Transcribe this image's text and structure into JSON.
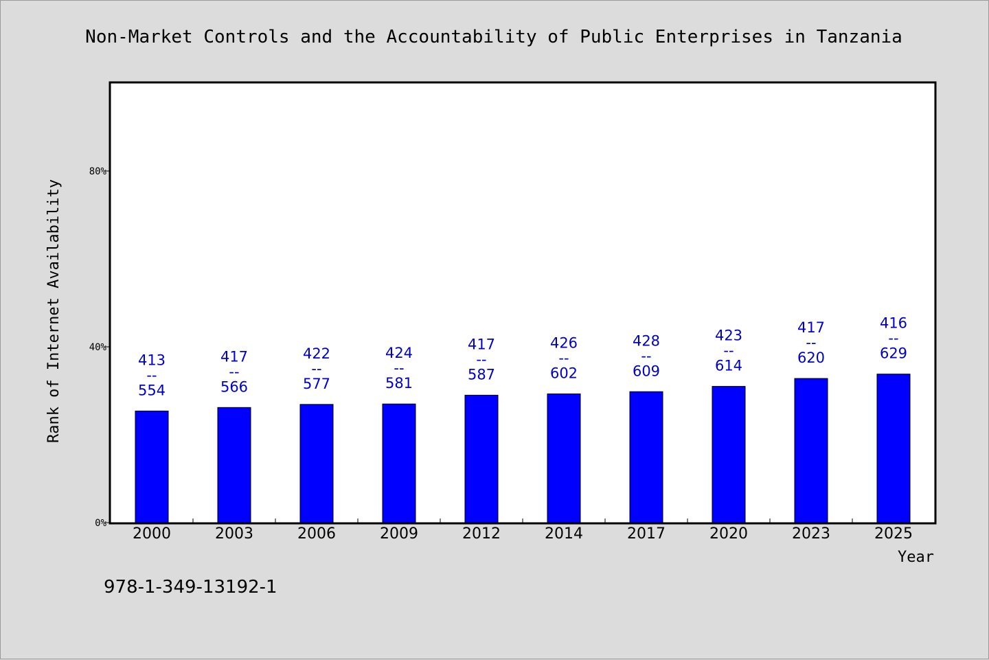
{
  "chart_data": {
    "type": "bar",
    "title": "Non-Market Controls and the Accountability of Public Enterprises in Tanzania",
    "xlabel": "Year",
    "ylabel": "Rank of Internet Availability",
    "categories": [
      "2000",
      "2003",
      "2006",
      "2009",
      "2012",
      "2014",
      "2017",
      "2020",
      "2023",
      "2025"
    ],
    "values": [
      25.4,
      26.2,
      26.9,
      27.0,
      29.0,
      29.3,
      29.8,
      31.0,
      32.8,
      33.8
    ],
    "bar_labels": [
      {
        "top": "413",
        "sep": "--",
        "bottom": "554"
      },
      {
        "top": "417",
        "sep": "--",
        "bottom": "566"
      },
      {
        "top": "422",
        "sep": "--",
        "bottom": "577"
      },
      {
        "top": "424",
        "sep": "--",
        "bottom": "581"
      },
      {
        "top": "417",
        "sep": "--",
        "bottom": "587"
      },
      {
        "top": "426",
        "sep": "--",
        "bottom": "602"
      },
      {
        "top": "428",
        "sep": "--",
        "bottom": "609"
      },
      {
        "top": "423",
        "sep": "--",
        "bottom": "614"
      },
      {
        "top": "417",
        "sep": "--",
        "bottom": "620"
      },
      {
        "top": "416",
        "sep": "--",
        "bottom": "629"
      }
    ],
    "ylim": [
      0,
      100
    ],
    "yticks": [
      {
        "value": 0,
        "label": "0%"
      },
      {
        "value": 40,
        "label": "40%"
      },
      {
        "value": 80,
        "label": "80%"
      }
    ],
    "grid": false,
    "legend": "none",
    "bar_color": "#0000ff",
    "label_color": "#0000cc"
  },
  "isbn": "978-1-349-13192-1"
}
